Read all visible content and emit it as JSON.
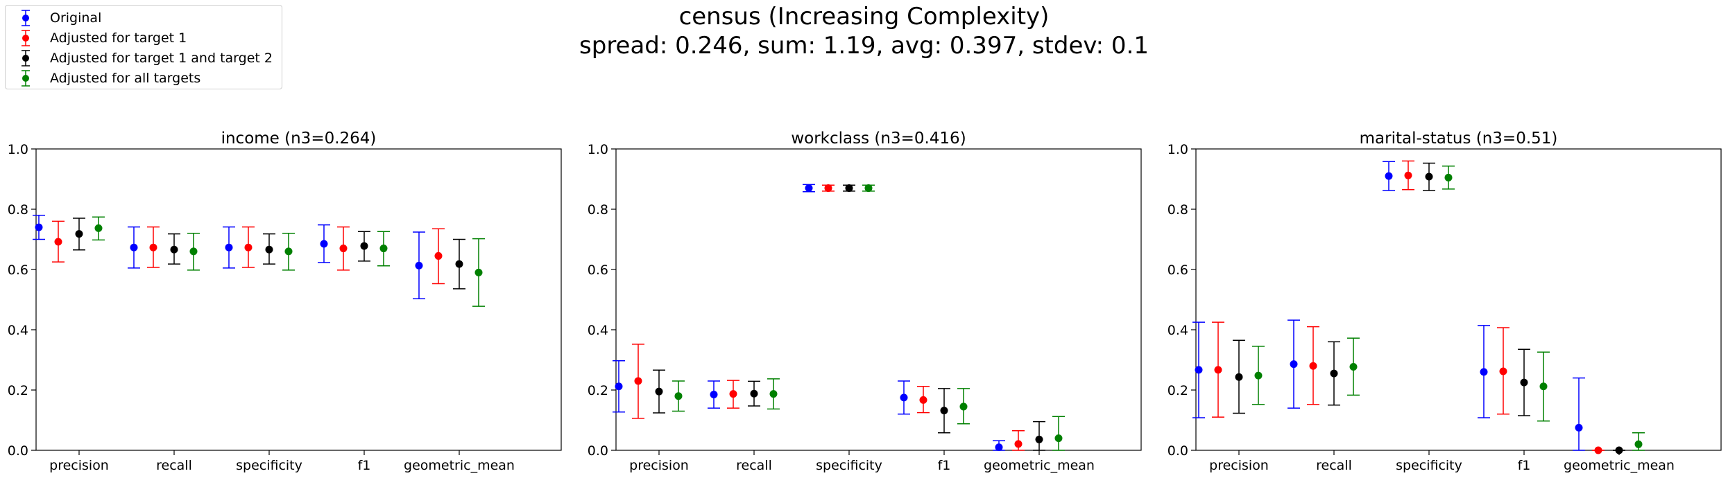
{
  "suptitle": {
    "line1": "census (Increasing Complexity)",
    "line2": "spread: 0.246, sum: 1.19, avg: 0.397, stdev: 0.1"
  },
  "legend": [
    {
      "label": "Original",
      "color": "#0000ff"
    },
    {
      "label": "Adjusted for target 1",
      "color": "#ff0000"
    },
    {
      "label": "Adjusted for target 1 and target 2",
      "color": "#000000"
    },
    {
      "label": "Adjusted for all targets",
      "color": "#008000"
    }
  ],
  "chart_data": [
    {
      "type": "scatter",
      "title": "income (n3=0.264)",
      "categories": [
        "precision",
        "recall",
        "specificity",
        "f1",
        "geometric_mean"
      ],
      "ylim": [
        0,
        1
      ],
      "yticks": [
        "0.0",
        "0.2",
        "0.4",
        "0.6",
        "0.8",
        "1.0"
      ],
      "series": [
        {
          "name": "Original",
          "values": [
            0.74,
            0.673,
            0.673,
            0.685,
            0.613
          ],
          "lower": [
            0.7,
            0.605,
            0.605,
            0.623,
            0.503
          ],
          "upper": [
            0.78,
            0.741,
            0.741,
            0.748,
            0.724
          ]
        },
        {
          "name": "Adjusted for target 1",
          "values": [
            0.692,
            0.673,
            0.673,
            0.67,
            0.645
          ],
          "lower": [
            0.625,
            0.607,
            0.607,
            0.598,
            0.553
          ],
          "upper": [
            0.76,
            0.741,
            0.741,
            0.741,
            0.735
          ]
        },
        {
          "name": "Adjusted for target 1 and target 2",
          "values": [
            0.718,
            0.666,
            0.666,
            0.678,
            0.618
          ],
          "lower": [
            0.665,
            0.618,
            0.618,
            0.628,
            0.536
          ],
          "upper": [
            0.77,
            0.718,
            0.718,
            0.726,
            0.7
          ]
        },
        {
          "name": "Adjusted for all targets",
          "values": [
            0.737,
            0.66,
            0.66,
            0.67,
            0.59
          ],
          "lower": [
            0.698,
            0.598,
            0.598,
            0.612,
            0.478
          ],
          "upper": [
            0.774,
            0.72,
            0.72,
            0.726,
            0.702
          ]
        }
      ]
    },
    {
      "type": "scatter",
      "title": "workclass (n3=0.416)",
      "categories": [
        "precision",
        "recall",
        "specificity",
        "f1",
        "geometric_mean"
      ],
      "ylim": [
        0,
        1
      ],
      "yticks": [
        "0.0",
        "0.2",
        "0.4",
        "0.6",
        "0.8",
        "1.0"
      ],
      "series": [
        {
          "name": "Original",
          "values": [
            0.212,
            0.185,
            0.87,
            0.175,
            0.01
          ],
          "lower": [
            0.127,
            0.14,
            0.858,
            0.12,
            0.0
          ],
          "upper": [
            0.297,
            0.23,
            0.882,
            0.23,
            0.032
          ]
        },
        {
          "name": "Adjusted for target 1",
          "values": [
            0.23,
            0.187,
            0.87,
            0.167,
            0.021
          ],
          "lower": [
            0.106,
            0.14,
            0.86,
            0.125,
            0.0
          ],
          "upper": [
            0.352,
            0.232,
            0.88,
            0.212,
            0.065
          ]
        },
        {
          "name": "Adjusted for target 1 and target 2",
          "values": [
            0.195,
            0.188,
            0.87,
            0.132,
            0.036
          ],
          "lower": [
            0.124,
            0.147,
            0.86,
            0.058,
            0.0
          ],
          "upper": [
            0.266,
            0.229,
            0.88,
            0.205,
            0.095
          ]
        },
        {
          "name": "Adjusted for all targets",
          "values": [
            0.18,
            0.187,
            0.87,
            0.145,
            0.04
          ],
          "lower": [
            0.13,
            0.137,
            0.86,
            0.088,
            0.0
          ],
          "upper": [
            0.23,
            0.237,
            0.88,
            0.205,
            0.112
          ]
        }
      ]
    },
    {
      "type": "scatter",
      "title": "marital-status (n3=0.51)",
      "categories": [
        "precision",
        "recall",
        "specificity",
        "f1",
        "geometric_mean"
      ],
      "ylim": [
        0,
        1
      ],
      "yticks": [
        "0.0",
        "0.2",
        "0.4",
        "0.6",
        "0.8",
        "1.0"
      ],
      "series": [
        {
          "name": "Original",
          "values": [
            0.267,
            0.286,
            0.91,
            0.26,
            0.075
          ],
          "lower": [
            0.108,
            0.14,
            0.862,
            0.108,
            0.0
          ],
          "upper": [
            0.425,
            0.432,
            0.958,
            0.414,
            0.24
          ]
        },
        {
          "name": "Adjusted for target 1",
          "values": [
            0.267,
            0.28,
            0.912,
            0.262,
            0.0
          ],
          "lower": [
            0.11,
            0.152,
            0.865,
            0.12,
            0.0
          ],
          "upper": [
            0.425,
            0.41,
            0.96,
            0.407,
            0.0
          ]
        },
        {
          "name": "Adjusted for target 1 and target 2",
          "values": [
            0.243,
            0.255,
            0.908,
            0.225,
            0.0
          ],
          "lower": [
            0.123,
            0.15,
            0.862,
            0.115,
            0.0
          ],
          "upper": [
            0.365,
            0.36,
            0.953,
            0.335,
            0.0
          ]
        },
        {
          "name": "Adjusted for all targets",
          "values": [
            0.248,
            0.277,
            0.905,
            0.212,
            0.02
          ],
          "lower": [
            0.152,
            0.183,
            0.867,
            0.097,
            0.0
          ],
          "upper": [
            0.345,
            0.372,
            0.943,
            0.326,
            0.058
          ]
        }
      ]
    }
  ]
}
